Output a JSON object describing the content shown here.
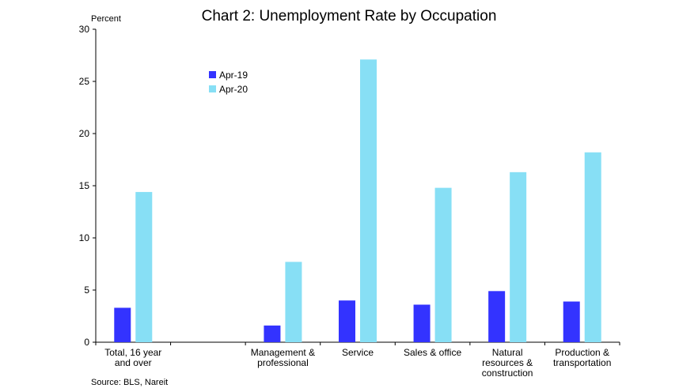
{
  "chart_data": {
    "type": "bar",
    "title": "Chart 2: Unemployment Rate by Occupation",
    "ylabel": "Percent",
    "xlabel": "",
    "ylim": [
      0,
      30
    ],
    "yticks": [
      0,
      5,
      10,
      15,
      20,
      25,
      30
    ],
    "grid": false,
    "legend_position": "top-left",
    "categories": [
      [
        "Total, 16 year",
        "and over"
      ],
      [],
      [
        "Management &",
        "professional"
      ],
      [
        "Service"
      ],
      [
        "Sales & office"
      ],
      [
        "Natural",
        "resources &",
        "construction"
      ],
      [
        "Production &",
        "transportation"
      ]
    ],
    "series": [
      {
        "name": "Apr-19",
        "color": "#3333ff",
        "values": [
          3.3,
          null,
          1.6,
          4.0,
          3.6,
          4.9,
          3.9
        ]
      },
      {
        "name": "Apr-20",
        "color": "#87dff5",
        "values": [
          14.4,
          null,
          7.7,
          27.1,
          14.8,
          16.3,
          18.2
        ]
      }
    ],
    "source": "Source: BLS, Nareit"
  }
}
